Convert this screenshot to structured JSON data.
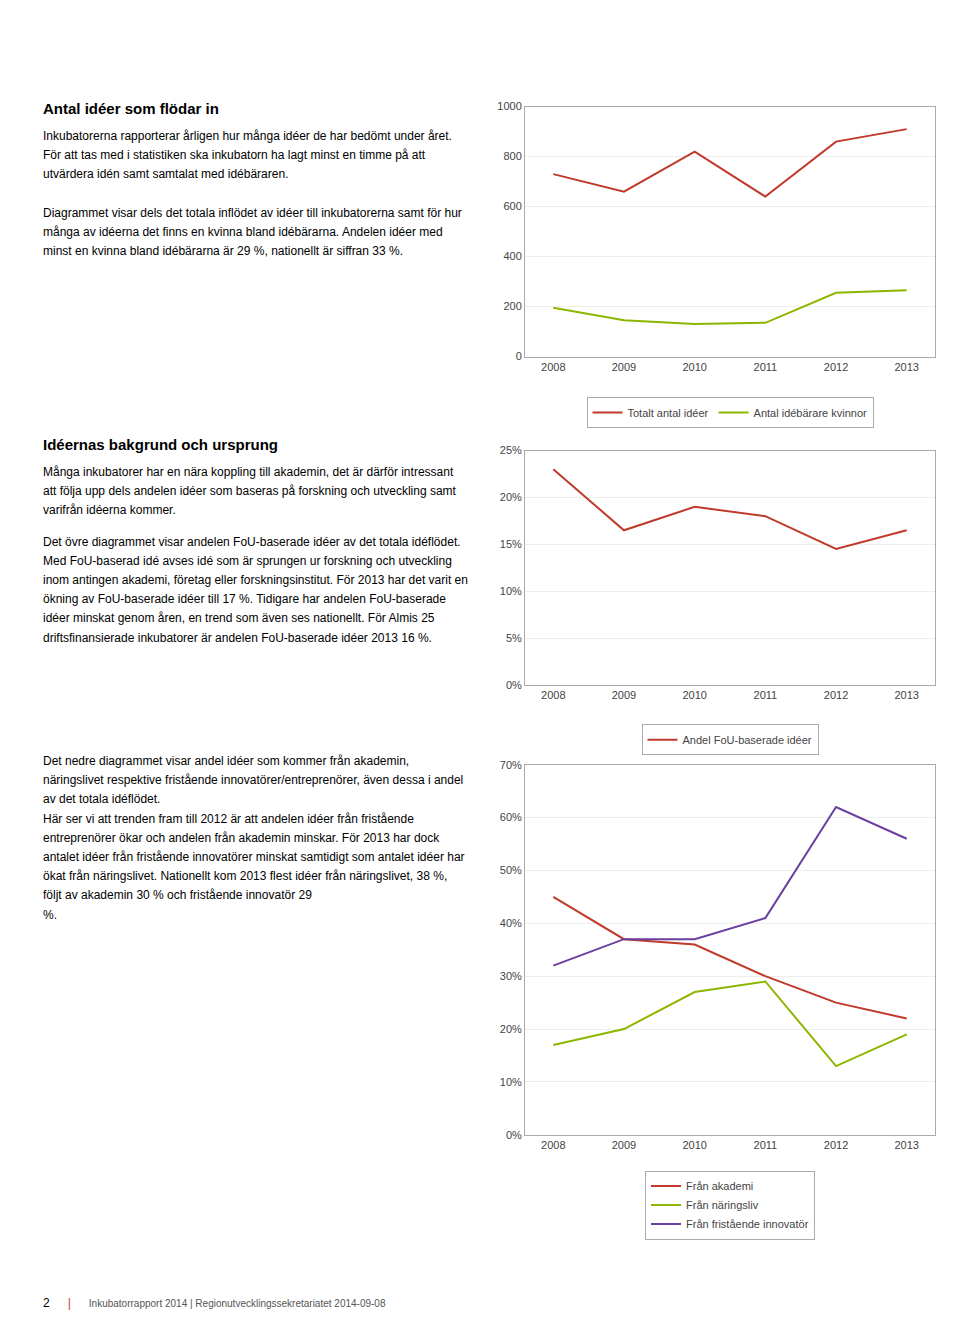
{
  "chart_data": [
    {
      "type": "line",
      "title": "Antal idéer som flödar in",
      "annotations": [
        "Inkubatorerna rapporterar årligen hur många idéer de har bedömt under året. För att tas med i statistiken ska inkubatorn ha lagt minst en timme på att utvärdera idén samt samtalat med idébäraren.\n\nDiagrammet visar dels det totala inflödet av idéer till inkubatorerna samt för hur många av idéerna det finns en kvinna bland idébärarna. Andelen idéer med minst en kvinna bland idébärarna är 29 %, nationellt är siffran 33 %."
      ],
      "x": [
        2008,
        2009,
        2010,
        2011,
        2012,
        2013
      ],
      "series": [
        {
          "name": "Totalt antal idéer",
          "color": "#C0392B",
          "values": [
            730,
            660,
            820,
            640,
            860,
            910
          ]
        },
        {
          "name": "Antal idébärare kvinnor",
          "color": "#8DB600",
          "values": [
            195,
            145,
            130,
            135,
            255,
            265
          ]
        }
      ],
      "xlim": [
        2007.6,
        2013.4
      ],
      "xticks": [
        2008,
        2009,
        2010,
        2011,
        2012,
        2013
      ],
      "ylim": [
        0,
        1000
      ],
      "yticks": [
        0,
        200,
        400,
        600,
        800,
        1000
      ],
      "grid": true
    },
    {
      "type": "line",
      "title": "Idéernas bakgrund och ursprung",
      "annotations": [
        "Många inkubatorer har en nära koppling till akademin, det är därför intressant att följa upp dels andelen idéer som baseras på forskning och utveckling samt varifrån idéerna kommer.",
        "Det övre diagrammet visar andelen FoU-baserade idéer av det totala idéflödet. Med FoU-baserad idé avses idé som är sprungen ur forskning och utveckling inom antingen akademi, företag eller forskningsinstitut. För 2013 har det varit en ökning av FoU-baserade idéer till 17 %. Tidigare har andelen FoU-baserade idéer minskat genom åren, en trend som även ses nationellt. För Almis 25 driftsfinansierade inkubatorer är andelen FoU-baserade idéer 2013 16 %."
      ],
      "x": [
        2008,
        2009,
        2010,
        2011,
        2012,
        2013
      ],
      "series": [
        {
          "name": "Andel FoU-baserade idéer",
          "color": "#C0392B",
          "values": [
            0.23,
            0.165,
            0.19,
            0.18,
            0.145,
            0.165
          ]
        }
      ],
      "xlim": [
        2007.6,
        2013.4
      ],
      "xticks": [
        2008,
        2009,
        2010,
        2011,
        2012,
        2013
      ],
      "ylim": [
        0,
        0.25
      ],
      "yticks": [
        {
          "value": 0,
          "label": "0%"
        },
        {
          "value": 0.05,
          "label": "5%"
        },
        {
          "value": 0.1,
          "label": "10%"
        },
        {
          "value": 0.15,
          "label": "15%"
        },
        {
          "value": 0.2,
          "label": "20%"
        },
        {
          "value": 0.25,
          "label": "25%"
        }
      ],
      "grid": true
    },
    {
      "type": "line",
      "annotations": [
        "Det nedre diagrammet visar andel idéer som kommer från akademin, näringslivet respektive fristående innovatörer/entreprenörer, även dessa i andel av det totala idéflödet.\nHär ser vi att trenden fram till 2012 är att andelen idéer från fristående entreprenörer ökar och andelen från akademin minskar. För 2013 har dock antalet idéer från fristående innovatörer minskat samtidigt som antalet idéer har ökat från näringslivet. Nationellt kom 2013 flest idéer från näringslivet, 38 %, följt av akademin 30 % och fristående innovatör 29\n%."
      ],
      "x": [
        2008,
        2009,
        2010,
        2011,
        2012,
        2013
      ],
      "series": [
        {
          "name": "Från akademi",
          "color": "#C0392B",
          "values": [
            0.45,
            0.37,
            0.36,
            0.3,
            0.25,
            0.22
          ]
        },
        {
          "name": "Från näringsliv",
          "color": "#8DB600",
          "values": [
            0.17,
            0.2,
            0.27,
            0.29,
            0.13,
            0.19
          ]
        },
        {
          "name": "Från fristående innovatör",
          "color": "#6B3FA0",
          "values": [
            0.32,
            0.37,
            0.37,
            0.41,
            0.62,
            0.56
          ]
        }
      ],
      "xlim": [
        2007.6,
        2013.4
      ],
      "xticks": [
        2008,
        2009,
        2010,
        2011,
        2012,
        2013
      ],
      "ylim": [
        0,
        0.7
      ],
      "yticks": [
        {
          "value": 0,
          "label": "0%"
        },
        {
          "value": 0.1,
          "label": "10%"
        },
        {
          "value": 0.2,
          "label": "20%"
        },
        {
          "value": 0.3,
          "label": "30%"
        },
        {
          "value": 0.4,
          "label": "40%"
        },
        {
          "value": 0.5,
          "label": "50%"
        },
        {
          "value": 0.6,
          "label": "60%"
        },
        {
          "value": 0.7,
          "label": "70%"
        }
      ],
      "grid": true
    }
  ],
  "annotations": [
    "2",
    "|",
    "Inkubatorrapport 2014  |  Regionutvecklingssekretariatet 2014-09-08"
  ]
}
